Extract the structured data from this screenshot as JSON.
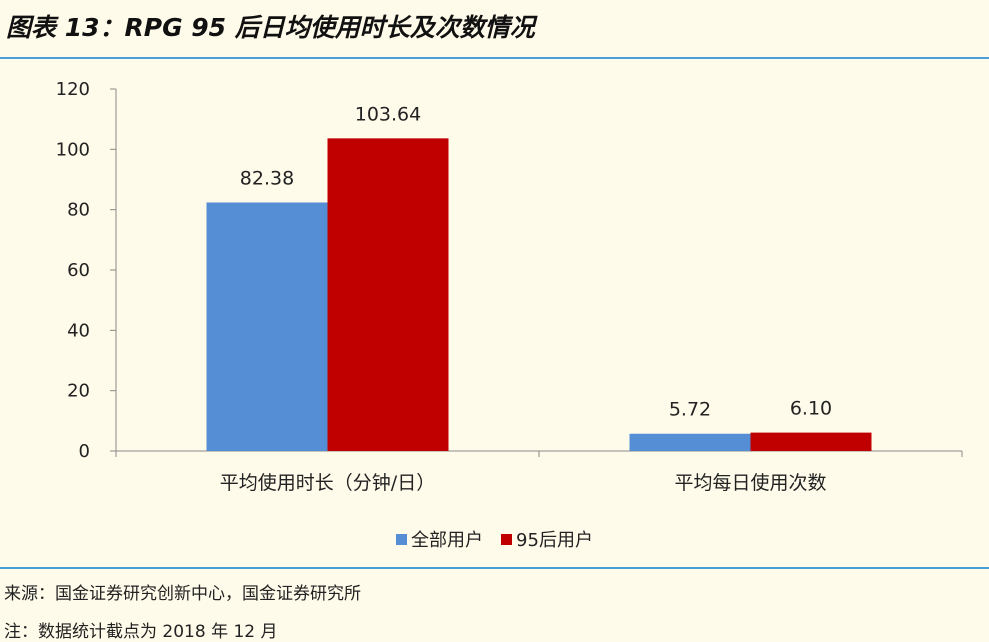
{
  "title": "图表 13：RPG 95 后日均使用时长及次数情况",
  "chart_data": {
    "type": "bar",
    "categories": [
      "平均使用时长（分钟/日）",
      "平均每日使用次数"
    ],
    "series": [
      {
        "name": "全部用户",
        "values": [
          82.38,
          5.72
        ],
        "labels": [
          "82.38",
          "5.72"
        ],
        "color": "#558ed5"
      },
      {
        "name": "95后用户",
        "values": [
          103.64,
          6.1
        ],
        "labels": [
          "103.64",
          "6.10"
        ],
        "color": "#c00000"
      }
    ],
    "ylim": [
      0,
      120
    ],
    "yticks": [
      0,
      20,
      40,
      60,
      80,
      100,
      120
    ],
    "grid": false,
    "legend_position": "bottom"
  },
  "footer": {
    "source": "来源：国金证券研究创新中心，国金证券研究所",
    "note": "注：数据统计截点为 2018 年 12 月"
  }
}
